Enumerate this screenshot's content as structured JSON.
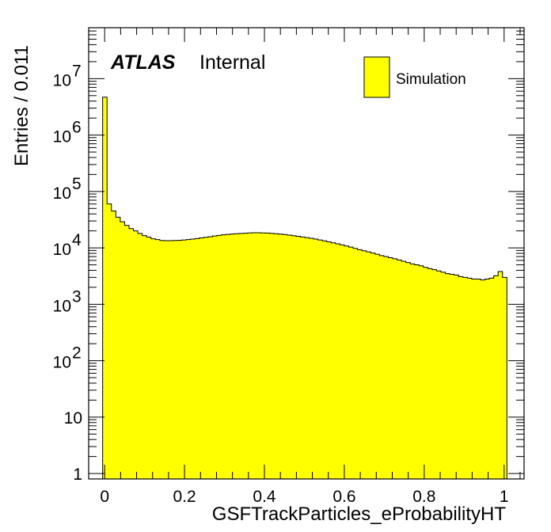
{
  "chart_data": {
    "type": "bar",
    "xlabel": "GSFTrackParticles_eProbabilityHT",
    "ylabel": "Entries / 0.011",
    "xlim": [
      -0.04,
      1.05
    ],
    "ylim": [
      0.8,
      80000000
    ],
    "log_y": true,
    "x_ticks": [
      {
        "value": 0,
        "label": "0"
      },
      {
        "value": 0.2,
        "label": "0.2"
      },
      {
        "value": 0.4,
        "label": "0.4"
      },
      {
        "value": 0.6,
        "label": "0.6"
      },
      {
        "value": 0.8,
        "label": "0.8"
      },
      {
        "value": 1,
        "label": "1"
      }
    ],
    "y_ticks": [
      {
        "value": 1,
        "label": "1"
      },
      {
        "value": 10,
        "label": "10"
      },
      {
        "value": 100,
        "base": "10",
        "exp": "2"
      },
      {
        "value": 1000,
        "base": "10",
        "exp": "3"
      },
      {
        "value": 10000,
        "base": "10",
        "exp": "4"
      },
      {
        "value": 100000,
        "base": "10",
        "exp": "5"
      },
      {
        "value": 1000000,
        "base": "10",
        "exp": "6"
      },
      {
        "value": 10000000,
        "base": "10",
        "exp": "7"
      }
    ],
    "bin_width": 0.011,
    "bin_start": -0.005,
    "series": [
      {
        "name": "Simulation",
        "color": "#ffff00",
        "edge_color": "#000000",
        "values": [
          4700000,
          60000,
          45000,
          35000,
          29000,
          25000,
          22000,
          20000,
          18000,
          16500,
          15500,
          14500,
          14000,
          13500,
          13400,
          13400,
          13500,
          13600,
          13800,
          14000,
          14300,
          14600,
          15000,
          15400,
          15800,
          16200,
          16600,
          17000,
          17300,
          17600,
          17800,
          18000,
          18200,
          18400,
          18500,
          18500,
          18400,
          18300,
          18100,
          17800,
          17500,
          17200,
          16800,
          16400,
          16000,
          15600,
          15200,
          14800,
          14300,
          13800,
          13300,
          12800,
          12300,
          11800,
          11300,
          10800,
          10300,
          9800,
          9300,
          8900,
          8500,
          8100,
          7700,
          7300,
          7000,
          6700,
          6400,
          6100,
          5800,
          5500,
          5200,
          5000,
          4800,
          4500,
          4300,
          4100,
          3900,
          3700,
          3500,
          3400,
          3300,
          3100,
          3000,
          2900,
          2800,
          2800,
          2700,
          2800,
          2900,
          3200,
          3800,
          3000
        ]
      }
    ],
    "legend": {
      "position": "top-right",
      "entries": [
        "Simulation"
      ]
    },
    "annotations": {
      "experiment": "ATLAS",
      "status": "Internal"
    },
    "grid": false
  }
}
